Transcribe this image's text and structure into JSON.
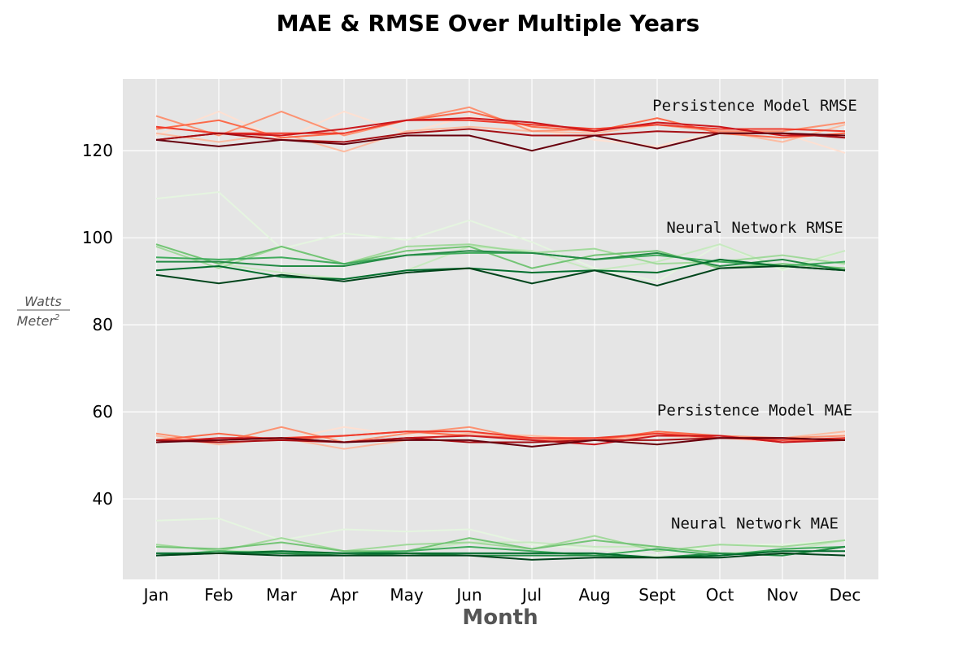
{
  "chart_data": {
    "type": "line",
    "title": "MAE & RMSE Over Multiple Years",
    "xlabel": "Month",
    "ylabel_numerator": "Watts",
    "ylabel_denominator_base": "Meter",
    "ylabel_denominator_exp": "2",
    "categories": [
      "Jan",
      "Feb",
      "Mar",
      "Apr",
      "May",
      "Jun",
      "Jul",
      "Aug",
      "Sept",
      "Oct",
      "Nov",
      "Dec"
    ],
    "ylim": [
      21.5,
      136.5
    ],
    "yticks": [
      40,
      60,
      80,
      100,
      120
    ],
    "grid": true,
    "background": "#e5e5e5",
    "annotations": [
      {
        "text": "Persistence Model RMSE",
        "x": "Sept",
        "y": 130.5
      },
      {
        "text": "Neural Network RMSE",
        "x": "Sept",
        "y": 102.5
      },
      {
        "text": "Persistence Model MAE",
        "x": "Sept",
        "y": 60.5
      },
      {
        "text": "Neural Network MAE",
        "x": "Sept",
        "y": 34.5
      }
    ],
    "series": [
      {
        "group": "Persistence Model RMSE",
        "color": "#fee0d2",
        "values": [
          123.5,
          129.0,
          122.5,
          129.0,
          124.0,
          128.0,
          125.0,
          122.5,
          121.0,
          124.5,
          124.0,
          119.5
        ]
      },
      {
        "group": "Persistence Model RMSE",
        "color": "#fcbba1",
        "values": [
          124.0,
          122.0,
          124.0,
          119.8,
          124.5,
          125.5,
          124.5,
          124.0,
          126.0,
          124.5,
          122.0,
          126.0
        ]
      },
      {
        "group": "Persistence Model RMSE",
        "color": "#fc9272",
        "values": [
          128.0,
          123.5,
          129.0,
          123.5,
          127.0,
          130.0,
          124.5,
          125.0,
          126.0,
          124.5,
          124.5,
          126.5
        ]
      },
      {
        "group": "Persistence Model RMSE",
        "color": "#fb6a4a",
        "values": [
          125.0,
          127.0,
          123.0,
          124.0,
          127.0,
          129.0,
          125.5,
          124.5,
          127.5,
          124.0,
          123.0,
          124.0
        ]
      },
      {
        "group": "Persistence Model RMSE",
        "color": "#ef3b2c",
        "values": [
          125.5,
          124.0,
          124.0,
          124.0,
          127.0,
          127.0,
          126.0,
          125.0,
          126.0,
          125.0,
          125.0,
          124.5
        ]
      },
      {
        "group": "Persistence Model RMSE",
        "color": "#cb181d",
        "values": [
          122.5,
          124.0,
          123.5,
          125.0,
          127.0,
          127.5,
          126.5,
          124.5,
          126.5,
          125.5,
          123.5,
          123.5
        ]
      },
      {
        "group": "Persistence Model RMSE",
        "color": "#a50f15",
        "values": [
          122.5,
          124.0,
          122.5,
          122.0,
          124.0,
          125.0,
          123.5,
          123.5,
          124.5,
          124.0,
          124.0,
          123.0
        ]
      },
      {
        "group": "Persistence Model RMSE",
        "color": "#67000d",
        "values": [
          122.5,
          121.0,
          122.5,
          121.5,
          123.5,
          123.5,
          120.0,
          123.5,
          120.5,
          124.0,
          124.0,
          123.5
        ]
      },
      {
        "group": "Neural Network RMSE",
        "color": "#e5f5e0",
        "values": [
          109.0,
          110.5,
          97.5,
          101.0,
          99.5,
          104.0,
          99.0,
          93.0,
          90.0,
          98.5,
          92.5,
          97.0
        ]
      },
      {
        "group": "Neural Network RMSE",
        "color": "#c7e9c0",
        "values": [
          98.5,
          94.0,
          92.0,
          90.5,
          92.5,
          98.0,
          97.0,
          92.5,
          94.5,
          98.5,
          93.0,
          97.0
        ]
      },
      {
        "group": "Neural Network RMSE",
        "color": "#a1d99b",
        "values": [
          98.0,
          93.0,
          98.0,
          94.0,
          98.0,
          98.5,
          96.5,
          97.5,
          94.0,
          94.5,
          96.0,
          94.0
        ]
      },
      {
        "group": "Neural Network RMSE",
        "color": "#74c476",
        "values": [
          98.5,
          94.0,
          98.0,
          94.0,
          97.0,
          98.0,
          93.0,
          96.0,
          97.0,
          93.0,
          94.0,
          93.0
        ]
      },
      {
        "group": "Neural Network RMSE",
        "color": "#41ab5d",
        "values": [
          95.5,
          95.0,
          95.5,
          94.0,
          96.0,
          96.5,
          96.5,
          95.0,
          96.0,
          94.5,
          93.5,
          94.5
        ]
      },
      {
        "group": "Neural Network RMSE",
        "color": "#238b45",
        "values": [
          94.5,
          94.5,
          93.5,
          93.5,
          96.0,
          97.0,
          96.5,
          95.0,
          96.5,
          93.5,
          95.0,
          92.5
        ]
      },
      {
        "group": "Neural Network RMSE",
        "color": "#006d2c",
        "values": [
          92.5,
          93.5,
          91.0,
          90.5,
          92.5,
          93.0,
          92.0,
          92.5,
          92.0,
          95.0,
          93.5,
          92.5
        ]
      },
      {
        "group": "Neural Network RMSE",
        "color": "#00441b",
        "values": [
          91.5,
          89.5,
          91.5,
          90.0,
          92.0,
          93.0,
          89.5,
          92.5,
          89.0,
          93.0,
          93.5,
          92.5
        ]
      },
      {
        "group": "Persistence Model MAE",
        "color": "#fee0d2",
        "values": [
          55.0,
          53.0,
          53.5,
          56.5,
          54.5,
          55.0,
          54.5,
          54.0,
          52.5,
          54.0,
          53.0,
          55.0
        ]
      },
      {
        "group": "Persistence Model MAE",
        "color": "#fcbba1",
        "values": [
          54.5,
          52.5,
          54.0,
          51.5,
          53.5,
          55.0,
          54.5,
          53.5,
          54.5,
          54.0,
          54.0,
          55.5
        ]
      },
      {
        "group": "Persistence Model MAE",
        "color": "#fc9272",
        "values": [
          55.0,
          53.0,
          56.5,
          53.0,
          55.0,
          56.5,
          53.5,
          53.5,
          55.0,
          54.5,
          54.0,
          54.5
        ]
      },
      {
        "group": "Persistence Model MAE",
        "color": "#fb6a4a",
        "values": [
          53.5,
          55.0,
          53.5,
          54.5,
          55.5,
          54.5,
          54.0,
          53.5,
          55.5,
          54.5,
          53.0,
          54.0
        ]
      },
      {
        "group": "Persistence Model MAE",
        "color": "#ef3b2c",
        "values": [
          53.5,
          53.5,
          54.0,
          54.5,
          55.5,
          55.5,
          54.0,
          54.0,
          55.0,
          54.0,
          53.5,
          54.0
        ]
      },
      {
        "group": "Persistence Model MAE",
        "color": "#cb181d",
        "values": [
          53.0,
          54.0,
          54.0,
          53.0,
          54.0,
          54.5,
          53.5,
          52.5,
          54.5,
          54.5,
          53.0,
          53.5
        ]
      },
      {
        "group": "Persistence Model MAE",
        "color": "#a50f15",
        "values": [
          53.5,
          53.0,
          53.5,
          53.0,
          54.0,
          53.0,
          53.0,
          53.5,
          53.5,
          54.0,
          54.0,
          53.5
        ]
      },
      {
        "group": "Persistence Model MAE",
        "color": "#67000d",
        "values": [
          53.0,
          53.5,
          54.0,
          53.0,
          53.5,
          53.5,
          52.0,
          53.5,
          52.5,
          54.0,
          54.0,
          53.5
        ]
      },
      {
        "group": "Neural Network MAE",
        "color": "#e5f5e0",
        "values": [
          35.0,
          35.5,
          30.5,
          33.0,
          32.5,
          33.0,
          29.5,
          28.5,
          27.0,
          29.5,
          29.5,
          30.5
        ]
      },
      {
        "group": "Neural Network MAE",
        "color": "#c7e9c0",
        "values": [
          29.5,
          28.0,
          28.0,
          27.5,
          28.0,
          30.0,
          30.0,
          29.0,
          29.0,
          27.5,
          28.0,
          30.5
        ]
      },
      {
        "group": "Neural Network MAE",
        "color": "#a1d99b",
        "values": [
          29.5,
          28.0,
          31.0,
          28.0,
          29.5,
          30.0,
          28.5,
          31.5,
          28.0,
          29.5,
          29.0,
          30.5
        ]
      },
      {
        "group": "Neural Network MAE",
        "color": "#74c476",
        "values": [
          29.0,
          28.5,
          30.0,
          28.0,
          28.0,
          31.0,
          28.5,
          30.5,
          29.0,
          27.5,
          27.0,
          29.0
        ]
      },
      {
        "group": "Neural Network MAE",
        "color": "#41ab5d",
        "values": [
          27.0,
          28.0,
          27.5,
          27.5,
          28.0,
          29.0,
          28.0,
          27.0,
          28.5,
          27.0,
          28.5,
          29.0
        ]
      },
      {
        "group": "Neural Network MAE",
        "color": "#238b45",
        "values": [
          27.0,
          27.5,
          27.5,
          27.0,
          27.5,
          27.0,
          27.0,
          27.0,
          26.5,
          27.5,
          27.0,
          29.0
        ]
      },
      {
        "group": "Neural Network MAE",
        "color": "#006d2c",
        "values": [
          27.5,
          27.5,
          28.0,
          27.5,
          27.5,
          27.5,
          27.5,
          27.5,
          26.5,
          27.0,
          28.0,
          28.0
        ]
      },
      {
        "group": "Neural Network MAE",
        "color": "#00441b",
        "values": [
          27.0,
          27.5,
          27.0,
          27.0,
          27.0,
          27.0,
          26.0,
          26.5,
          26.5,
          26.5,
          27.5,
          27.0
        ]
      }
    ]
  }
}
